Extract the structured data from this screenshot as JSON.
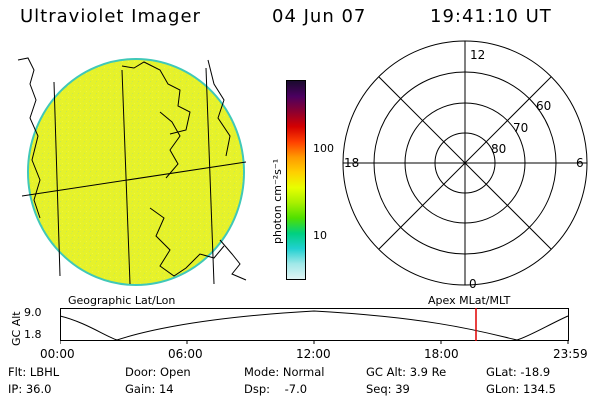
{
  "header": {
    "title": "Ultraviolet Imager",
    "date": "04 Jun 07",
    "time": "19:41:10 UT"
  },
  "colorbar": {
    "label": "photon cm⁻²s⁻¹",
    "ticks": [
      "100",
      "10"
    ],
    "colors": [
      "#1a0a2e",
      "#4b0060",
      "#8b0030",
      "#d40000",
      "#ff4000",
      "#ff9a00",
      "#ffd000",
      "#e8ff00",
      "#a8f000",
      "#50e000",
      "#00d080",
      "#20d0d0",
      "#a0e8e8",
      "#e0f4f4"
    ]
  },
  "image_panel": {
    "fill_color": "#e6f22a",
    "edge_color": "#40c8b8"
  },
  "polar_plot": {
    "mlt_labels": {
      "top": "12",
      "left": "18",
      "right": "6",
      "bottom": "0"
    },
    "lat_labels": [
      "60",
      "70",
      "80"
    ]
  },
  "strip_chart": {
    "left_caption": "Geographic Lat/Lon",
    "right_caption": "Apex MLat/MLT",
    "ylabel": "GC Alt",
    "y_ticks": [
      "9.0",
      "1.8"
    ],
    "x_ticks": [
      "00:00",
      "06:00",
      "12:00",
      "18:00",
      "23:59"
    ],
    "marker_color": "#e00000"
  },
  "info": {
    "flt": "Flt: LBHL",
    "ip": "IP: 36.0",
    "door": "Door: Open",
    "gain": "Gain: 14",
    "mode": "Mode: Normal",
    "dsp": "Dsp:    -7.0",
    "gcalt": "GC Alt: 3.9 Re",
    "seq": "Seq: 39",
    "glat": "GLat: -18.9",
    "glon": "GLon: 134.5"
  }
}
